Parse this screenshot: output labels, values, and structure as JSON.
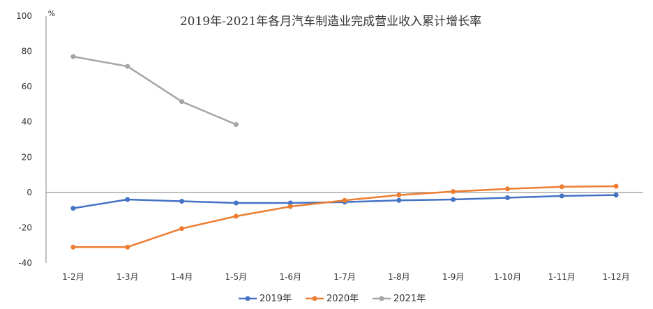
{
  "chart_data": {
    "type": "line",
    "title": "2019年-2021年各月汽车制造业完成营业收入累计增长率",
    "ylabel": "%",
    "xlabel": "",
    "ylim": [
      -40,
      100
    ],
    "yticks": [
      "100",
      "80",
      "60",
      "40",
      "20",
      "0",
      "-20",
      "-40"
    ],
    "ytick_values": [
      100,
      80,
      60,
      40,
      20,
      0,
      -20,
      -40
    ],
    "categories": [
      "1-2月",
      "1-3月",
      "1-4月",
      "1-5月",
      "1-6月",
      "1-7月",
      "1-8月",
      "1-9月",
      "1-10月",
      "1-11月",
      "1-12月"
    ],
    "legend_position": "bottom",
    "series": [
      {
        "name": "2019年",
        "color": "#4472C4",
        "values": [
          -9.0,
          -4.0,
          -5.0,
          -6.0,
          -6.0,
          -5.5,
          -4.5,
          -4.0,
          -3.0,
          -2.0,
          -1.5
        ]
      },
      {
        "name": "2020年",
        "color": "#ED7D31",
        "values": [
          -31.0,
          -31.0,
          -20.5,
          -13.5,
          -8.0,
          -4.5,
          -1.5,
          0.5,
          2.0,
          3.2,
          3.5
        ]
      },
      {
        "name": "2021年",
        "color": "#A5A5A5",
        "values": [
          77.0,
          71.5,
          51.5,
          38.5,
          null,
          null,
          null,
          null,
          null,
          null,
          null
        ]
      }
    ]
  }
}
